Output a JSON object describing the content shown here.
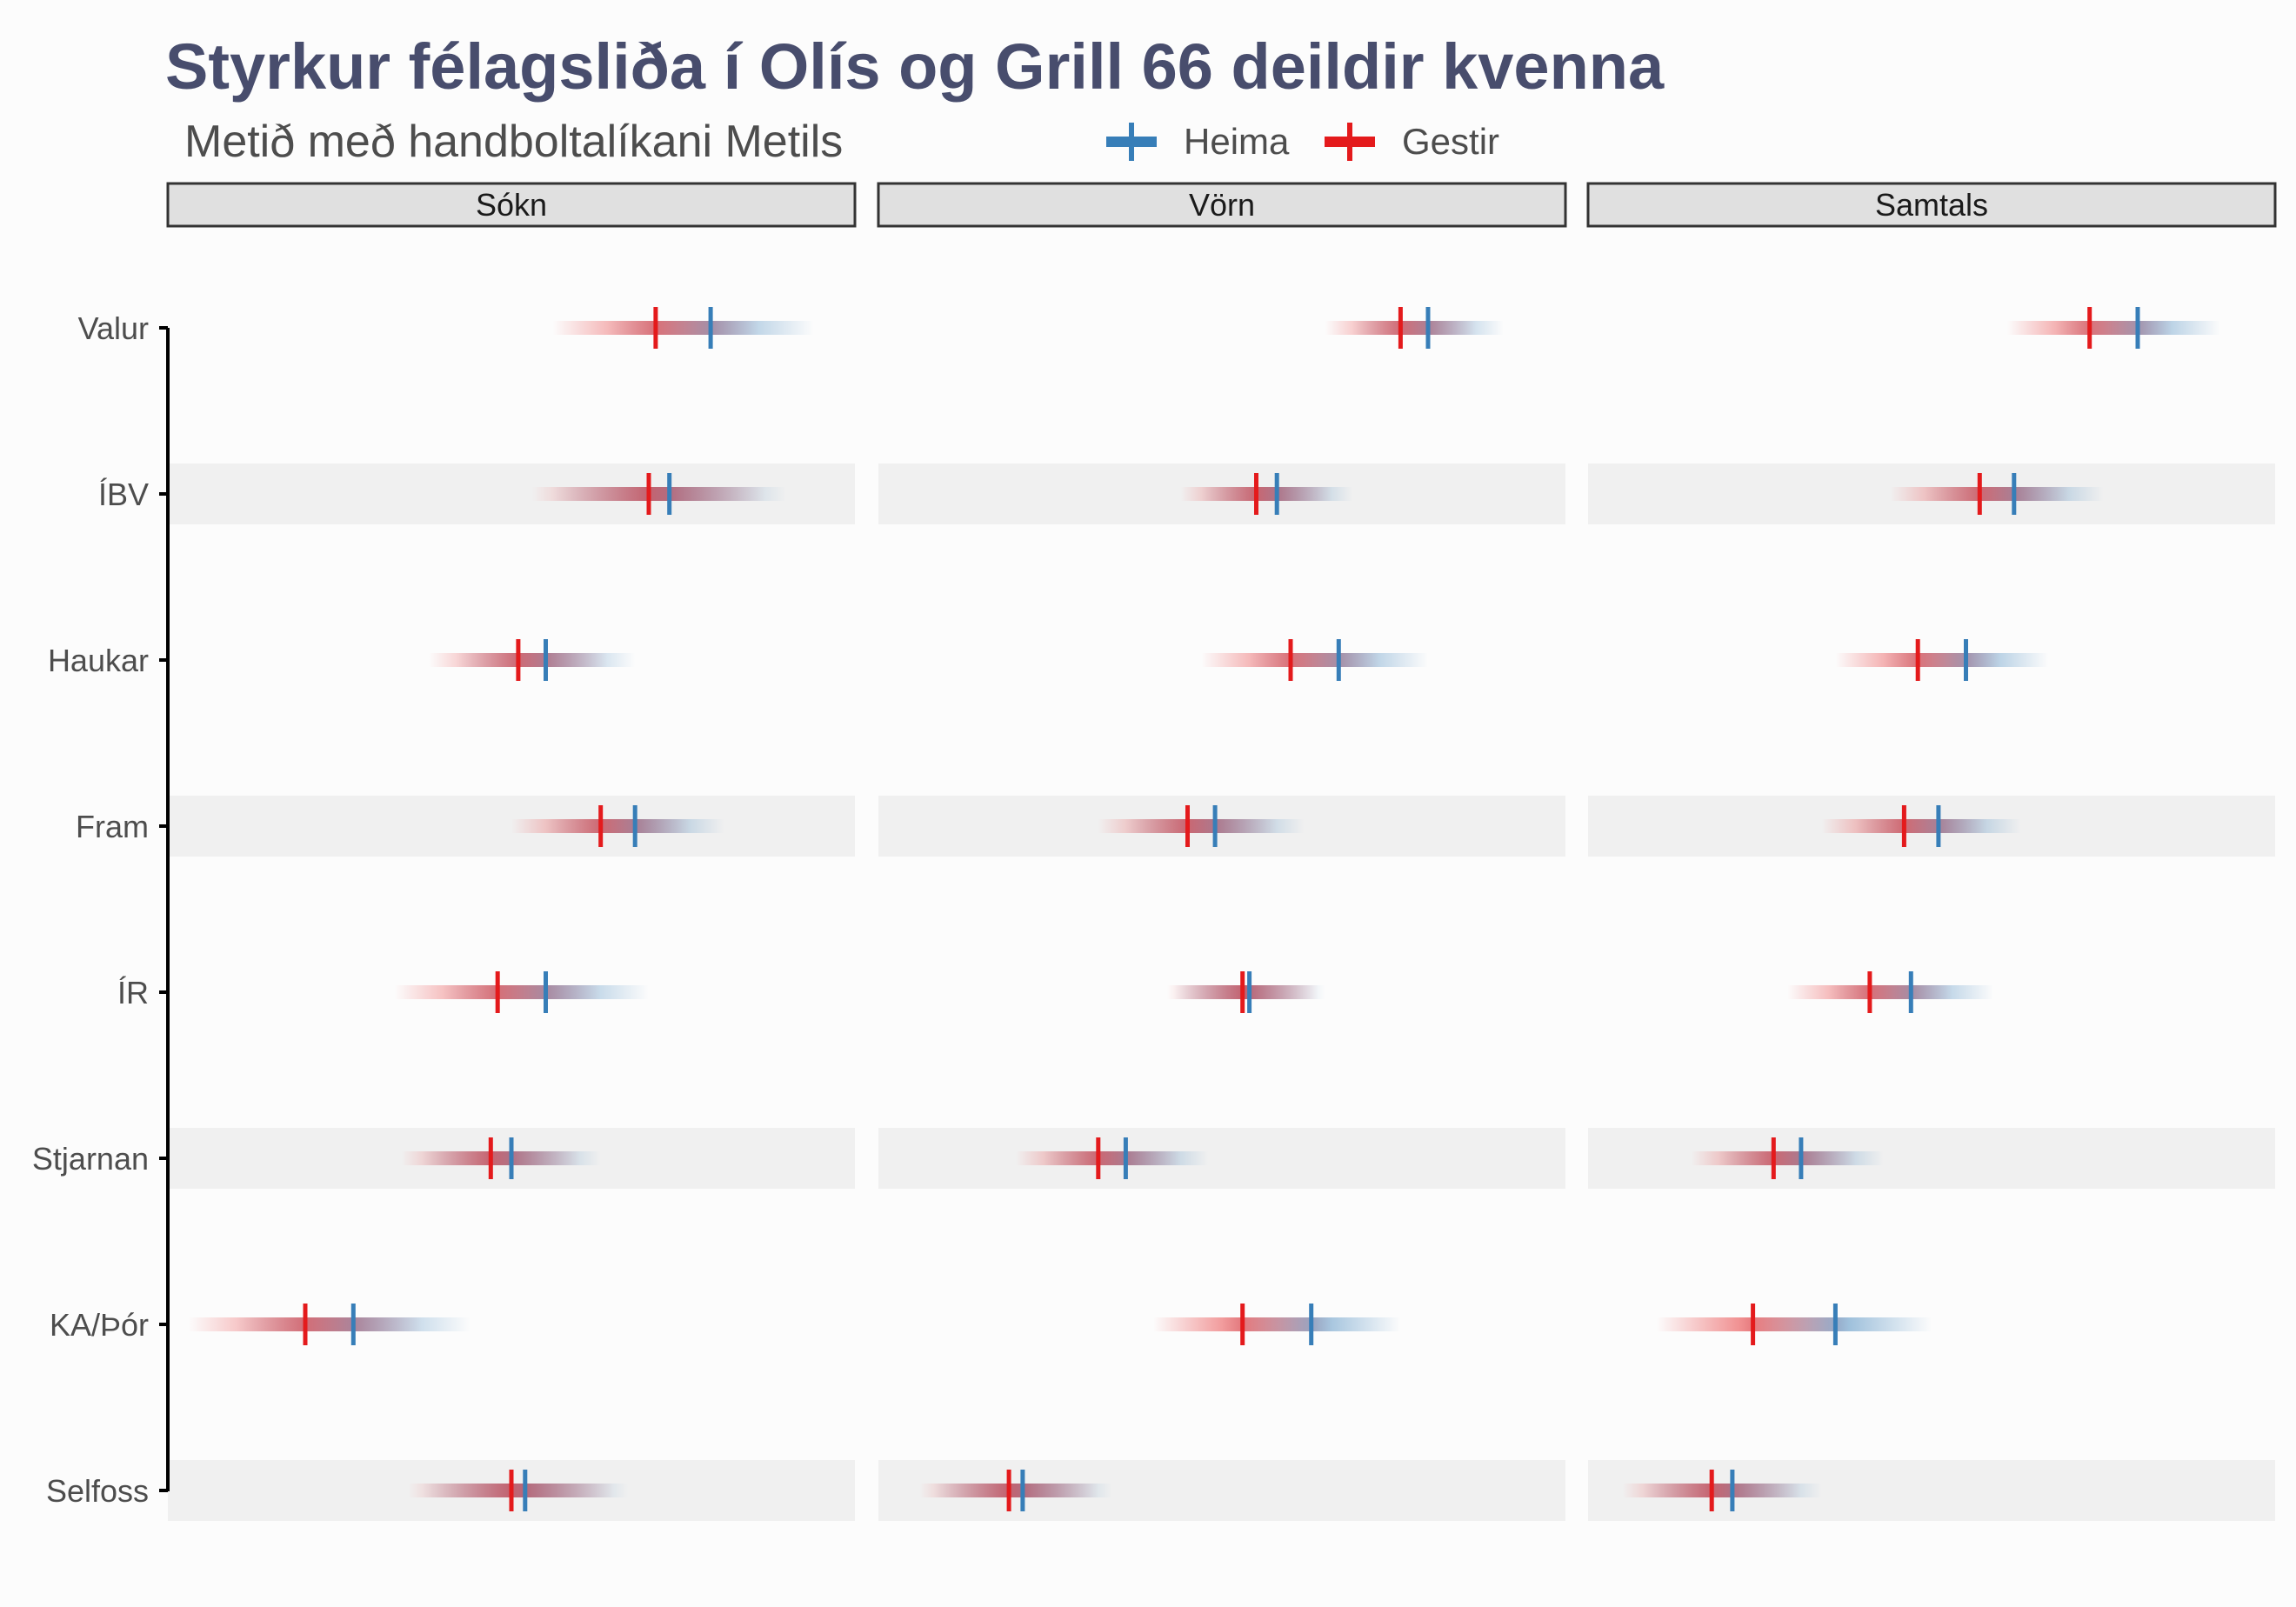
{
  "chart_data": {
    "type": "scatter",
    "title": "Styrkur félagsliða í Olís og Grill 66 deildir kvenna",
    "subtitle": "Metið með handboltalíkani Metils",
    "legend": {
      "position": "top",
      "entries": [
        {
          "name": "Heima",
          "color": "#377eb8"
        },
        {
          "name": "Gestir",
          "color": "#e41a1c"
        }
      ]
    },
    "teams": [
      "Valur",
      "ÍBV",
      "Haukar",
      "Fram",
      "ÍR",
      "Stjarnan",
      "KA/Þór",
      "Selfoss"
    ],
    "facets": [
      "Sókn",
      "Vörn",
      "Samtals"
    ],
    "x_range": [
      0,
      1
    ],
    "y_axis_line": true,
    "grid": false,
    "colors": {
      "home": "#377eb8",
      "away": "#e41a1c",
      "band": "#f0f0f0",
      "strip": "#e0e0e0"
    },
    "series": [
      {
        "name": "Heima",
        "facet_values": {
          "Sókn": [
            0.79,
            0.73,
            0.55,
            0.68,
            0.55,
            0.5,
            0.27,
            0.52
          ],
          "Vörn": [
            0.8,
            0.58,
            0.67,
            0.49,
            0.54,
            0.36,
            0.63,
            0.21
          ],
          "Samtals": [
            0.8,
            0.62,
            0.55,
            0.51,
            0.47,
            0.31,
            0.36,
            0.21
          ]
        },
        "spread": {
          "Sókn": [
            0.15,
            0.17,
            0.13,
            0.13,
            0.15,
            0.13,
            0.17,
            0.15
          ],
          "Vörn": [
            0.11,
            0.11,
            0.13,
            0.13,
            0.11,
            0.12,
            0.13,
            0.13
          ],
          "Samtals": [
            0.12,
            0.13,
            0.12,
            0.12,
            0.12,
            0.12,
            0.14,
            0.13
          ]
        }
      },
      {
        "name": "Gestir",
        "facet_values": {
          "Sókn": [
            0.71,
            0.7,
            0.51,
            0.63,
            0.48,
            0.47,
            0.2,
            0.5
          ],
          "Vörn": [
            0.76,
            0.55,
            0.6,
            0.45,
            0.53,
            0.32,
            0.53,
            0.19
          ],
          "Samtals": [
            0.73,
            0.57,
            0.48,
            0.46,
            0.41,
            0.27,
            0.24,
            0.18
          ]
        },
        "spread": {
          "Sókn": [
            0.15,
            0.17,
            0.13,
            0.13,
            0.15,
            0.13,
            0.17,
            0.15
          ],
          "Vörn": [
            0.11,
            0.11,
            0.13,
            0.13,
            0.11,
            0.12,
            0.13,
            0.13
          ],
          "Samtals": [
            0.12,
            0.13,
            0.12,
            0.12,
            0.12,
            0.12,
            0.14,
            0.13
          ]
        }
      }
    ]
  }
}
